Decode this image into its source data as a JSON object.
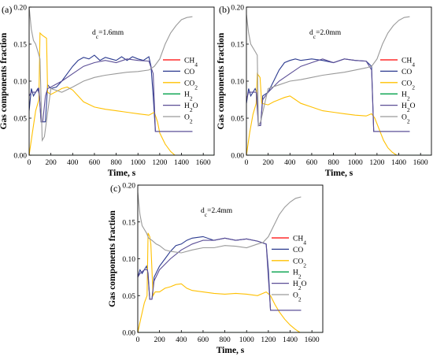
{
  "figure": {
    "panel_count": 3
  },
  "chart_data": [
    {
      "type": "line",
      "panel_label": "(a)",
      "annotation": "d_c=1.6mm",
      "annotation_main": "d",
      "annotation_sub": "c",
      "annotation_rest": "=1.6mm",
      "xlabel": "Time, s",
      "ylabel": "Gas components fraction",
      "xlim": [
        0,
        1700
      ],
      "ylim": [
        0,
        0.2
      ],
      "xticks": [
        0,
        200,
        400,
        600,
        800,
        1000,
        1200,
        1400,
        1600
      ],
      "yticks": [
        0.0,
        0.05,
        0.1,
        0.15,
        0.2
      ],
      "ytick_labels": [
        "0.00",
        "0.05",
        "0.10",
        "0.15",
        "0.20"
      ],
      "grid": false,
      "legend_position": "right",
      "series": [
        {
          "name": "CH4",
          "label_main": "CH",
          "label_sub": "4",
          "color": "#ff0000",
          "x": [
            0,
            1700
          ],
          "y": [
            0,
            0
          ]
        },
        {
          "name": "CO",
          "label_main": "CO",
          "label_sub": "",
          "color": "#2b3a8f",
          "x": [
            0,
            20,
            40,
            60,
            80,
            95,
            110,
            150,
            170,
            200,
            250,
            300,
            350,
            400,
            450,
            500,
            550,
            600,
            650,
            700,
            750,
            800,
            850,
            900,
            950,
            1000,
            1050,
            1100,
            1120,
            1140,
            1160,
            1200,
            1500
          ],
          "y": [
            0.06,
            0.09,
            0.08,
            0.085,
            0.09,
            0.08,
            0.045,
            0.045,
            0.095,
            0.09,
            0.092,
            0.1,
            0.11,
            0.12,
            0.128,
            0.132,
            0.13,
            0.135,
            0.128,
            0.132,
            0.13,
            0.128,
            0.133,
            0.128,
            0.133,
            0.13,
            0.128,
            0.133,
            0.12,
            0.08,
            0.032,
            0.032,
            0.032
          ]
        },
        {
          "name": "CO2",
          "label_main": "CO",
          "label_sub": "2",
          "color": "#ffc000",
          "x": [
            0,
            30,
            60,
            90,
            100,
            120,
            160,
            170,
            200,
            250,
            300,
            350,
            400,
            500,
            600,
            700,
            800,
            900,
            1000,
            1100,
            1150,
            1180,
            1200,
            1250,
            1300,
            1340,
            1360
          ],
          "y": [
            0.0,
            0.03,
            0.06,
            0.075,
            0.165,
            0.162,
            0.158,
            0.085,
            0.082,
            0.086,
            0.09,
            0.092,
            0.088,
            0.072,
            0.065,
            0.062,
            0.06,
            0.058,
            0.056,
            0.054,
            0.058,
            0.045,
            0.03,
            0.015,
            0.005,
            0.0,
            0.0
          ]
        },
        {
          "name": "H2",
          "label_main": "H",
          "label_sub": "2",
          "color": "#00a04a",
          "x": [
            0,
            1700
          ],
          "y": [
            0,
            0
          ]
        },
        {
          "name": "H2O",
          "label_main": "H",
          "label_sub": "2",
          "label_rest": "O",
          "color": "#5b4e96",
          "x": [
            0,
            20,
            60,
            90,
            110,
            125,
            150,
            170,
            200,
            300,
            400,
            500,
            600,
            700,
            800,
            900,
            1000,
            1100,
            1140,
            1160,
            1500
          ],
          "y": [
            0.08,
            0.085,
            0.085,
            0.09,
            0.045,
            0.045,
            0.08,
            0.09,
            0.092,
            0.1,
            0.11,
            0.12,
            0.125,
            0.128,
            0.125,
            0.13,
            0.128,
            0.127,
            0.11,
            0.032,
            0.032
          ]
        },
        {
          "name": "O2",
          "label_main": "O",
          "label_sub": "2",
          "color": "#9a9a9a",
          "x": [
            0,
            20,
            40,
            60,
            80,
            100,
            120,
            140,
            200,
            300,
            400,
            500,
            600,
            700,
            800,
            900,
            1000,
            1100,
            1150,
            1200,
            1250,
            1300,
            1350,
            1400,
            1450,
            1500
          ],
          "y": [
            0.2,
            0.17,
            0.155,
            0.15,
            0.14,
            0.13,
            0.02,
            0.025,
            0.09,
            0.085,
            0.092,
            0.1,
            0.105,
            0.108,
            0.11,
            0.112,
            0.113,
            0.115,
            0.12,
            0.13,
            0.15,
            0.165,
            0.175,
            0.183,
            0.186,
            0.187
          ]
        }
      ]
    },
    {
      "type": "line",
      "panel_label": "(b)",
      "annotation": "d_c=2.0mm",
      "annotation_main": "d",
      "annotation_sub": "c",
      "annotation_rest": "=2.0mm",
      "xlabel": "Time, s",
      "ylabel": "Gas components fraction",
      "xlim": [
        0,
        1700
      ],
      "ylim": [
        0,
        0.2
      ],
      "xticks": [
        0,
        200,
        400,
        600,
        800,
        1000,
        1200,
        1400,
        1600
      ],
      "yticks": [
        0.0,
        0.05,
        0.1,
        0.15,
        0.2
      ],
      "ytick_labels": [
        "0.00",
        "0.05",
        "0.10",
        "0.15",
        "0.20"
      ],
      "grid": false,
      "legend_position": "right",
      "series": [
        {
          "name": "CH4",
          "label_main": "CH",
          "label_sub": "4",
          "color": "#ff0000",
          "x": [
            0,
            1700
          ],
          "y": [
            0,
            0
          ]
        },
        {
          "name": "CO",
          "label_main": "CO",
          "label_sub": "",
          "color": "#2b3a8f",
          "x": [
            0,
            20,
            40,
            60,
            80,
            95,
            110,
            130,
            150,
            200,
            250,
            300,
            350,
            400,
            450,
            500,
            600,
            700,
            800,
            900,
            1000,
            1100,
            1150,
            1170,
            1200,
            1500
          ],
          "y": [
            0.07,
            0.09,
            0.08,
            0.085,
            0.09,
            0.085,
            0.04,
            0.04,
            0.08,
            0.085,
            0.1,
            0.115,
            0.125,
            0.128,
            0.13,
            0.128,
            0.13,
            0.128,
            0.125,
            0.13,
            0.128,
            0.127,
            0.12,
            0.032,
            0.032,
            0.032
          ]
        },
        {
          "name": "CO2",
          "label_main": "CO",
          "label_sub": "2",
          "color": "#ffc000",
          "x": [
            0,
            30,
            60,
            90,
            100,
            110,
            125,
            140,
            200,
            250,
            300,
            350,
            400,
            450,
            500,
            600,
            700,
            800,
            900,
            1000,
            1100,
            1150,
            1180,
            1220,
            1260,
            1300,
            1340,
            1380,
            1420
          ],
          "y": [
            0.0,
            0.03,
            0.055,
            0.07,
            0.11,
            0.108,
            0.105,
            0.07,
            0.068,
            0.072,
            0.075,
            0.078,
            0.08,
            0.075,
            0.07,
            0.065,
            0.06,
            0.058,
            0.056,
            0.054,
            0.053,
            0.056,
            0.05,
            0.035,
            0.02,
            0.01,
            0.004,
            0.0,
            0.0
          ]
        },
        {
          "name": "H2",
          "label_main": "H",
          "label_sub": "2",
          "color": "#00a04a",
          "x": [
            0,
            1700
          ],
          "y": [
            0,
            0
          ]
        },
        {
          "name": "H2O",
          "label_main": "H",
          "label_sub": "2",
          "label_rest": "O",
          "color": "#5b4e96",
          "x": [
            0,
            20,
            60,
            90,
            110,
            130,
            150,
            200,
            300,
            400,
            500,
            600,
            700,
            800,
            900,
            1000,
            1100,
            1150,
            1170,
            1500
          ],
          "y": [
            0.075,
            0.085,
            0.085,
            0.085,
            0.04,
            0.04,
            0.075,
            0.085,
            0.1,
            0.11,
            0.12,
            0.125,
            0.13,
            0.125,
            0.13,
            0.128,
            0.127,
            0.115,
            0.032,
            0.032
          ]
        },
        {
          "name": "O2",
          "label_main": "O",
          "label_sub": "2",
          "color": "#9a9a9a",
          "x": [
            0,
            20,
            40,
            60,
            80,
            100,
            110,
            130,
            200,
            300,
            400,
            500,
            600,
            700,
            800,
            900,
            1000,
            1100,
            1150,
            1200,
            1250,
            1300,
            1350,
            1400,
            1450,
            1500
          ],
          "y": [
            0.19,
            0.165,
            0.15,
            0.145,
            0.14,
            0.135,
            0.04,
            0.045,
            0.09,
            0.095,
            0.1,
            0.102,
            0.105,
            0.108,
            0.11,
            0.112,
            0.115,
            0.118,
            0.12,
            0.13,
            0.15,
            0.165,
            0.175,
            0.182,
            0.186,
            0.187
          ]
        }
      ]
    },
    {
      "type": "line",
      "panel_label": "(c)",
      "annotation": "d_c=2.4mm",
      "annotation_main": "d",
      "annotation_sub": "c",
      "annotation_rest": "=2.4mm",
      "xlabel": "Time, s",
      "ylabel": "Gas components fraction",
      "xlim": [
        0,
        1700
      ],
      "ylim": [
        0,
        0.2
      ],
      "xticks": [
        0,
        200,
        400,
        600,
        800,
        1000,
        1200,
        1400,
        1600
      ],
      "yticks": [
        0.0,
        0.05,
        0.1,
        0.15,
        0.2
      ],
      "ytick_labels": [
        "0.00",
        "0.05",
        "0.10",
        "0.15",
        "0.20"
      ],
      "grid": false,
      "legend_position": "right",
      "series": [
        {
          "name": "CH4",
          "label_main": "CH",
          "label_sub": "4",
          "color": "#ff0000",
          "x": [
            0,
            1700
          ],
          "y": [
            0,
            0
          ]
        },
        {
          "name": "CO",
          "label_main": "CO",
          "label_sub": "",
          "color": "#2b3a8f",
          "x": [
            0,
            20,
            40,
            60,
            80,
            95,
            110,
            130,
            150,
            200,
            250,
            300,
            350,
            400,
            450,
            500,
            600,
            700,
            800,
            900,
            1000,
            1100,
            1180,
            1200,
            1220,
            1500
          ],
          "y": [
            0.075,
            0.085,
            0.08,
            0.085,
            0.09,
            0.08,
            0.045,
            0.045,
            0.075,
            0.09,
            0.1,
            0.11,
            0.118,
            0.12,
            0.125,
            0.128,
            0.13,
            0.125,
            0.128,
            0.125,
            0.127,
            0.124,
            0.12,
            0.085,
            0.03,
            0.03
          ]
        },
        {
          "name": "CO2",
          "label_main": "CO",
          "label_sub": "2",
          "color": "#ffc000",
          "x": [
            0,
            30,
            60,
            85,
            95,
            110,
            120,
            140,
            160,
            200,
            250,
            300,
            350,
            400,
            450,
            500,
            600,
            700,
            800,
            900,
            1000,
            1100,
            1180,
            1220,
            1260,
            1300,
            1350,
            1400,
            1450,
            1490
          ],
          "y": [
            0.0,
            0.02,
            0.04,
            0.05,
            0.135,
            0.13,
            0.12,
            0.05,
            0.055,
            0.055,
            0.06,
            0.062,
            0.065,
            0.066,
            0.06,
            0.057,
            0.055,
            0.053,
            0.052,
            0.053,
            0.052,
            0.05,
            0.055,
            0.05,
            0.038,
            0.028,
            0.018,
            0.01,
            0.004,
            0.0
          ]
        },
        {
          "name": "H2",
          "label_main": "H",
          "label_sub": "2",
          "color": "#00a04a",
          "x": [
            0,
            1700
          ],
          "y": [
            0,
            0
          ]
        },
        {
          "name": "H2O",
          "label_main": "H",
          "label_sub": "2",
          "label_rest": "O",
          "color": "#5b4e96",
          "x": [
            0,
            20,
            60,
            90,
            110,
            130,
            150,
            200,
            300,
            400,
            500,
            600,
            700,
            800,
            900,
            1000,
            1100,
            1180,
            1220,
            1500
          ],
          "y": [
            0.075,
            0.08,
            0.085,
            0.085,
            0.045,
            0.045,
            0.07,
            0.085,
            0.1,
            0.112,
            0.12,
            0.125,
            0.125,
            0.128,
            0.125,
            0.127,
            0.124,
            0.12,
            0.03,
            0.03
          ]
        },
        {
          "name": "O2",
          "label_main": "O",
          "label_sub": "2",
          "color": "#9a9a9a",
          "x": [
            0,
            20,
            40,
            60,
            80,
            100,
            130,
            170,
            200,
            250,
            300,
            400,
            500,
            600,
            700,
            800,
            900,
            1000,
            1100,
            1150,
            1200,
            1250,
            1300,
            1350,
            1400,
            1450,
            1500
          ],
          "y": [
            0.19,
            0.16,
            0.145,
            0.14,
            0.135,
            0.128,
            0.125,
            0.12,
            0.118,
            0.112,
            0.11,
            0.108,
            0.112,
            0.115,
            0.115,
            0.118,
            0.117,
            0.115,
            0.12,
            0.122,
            0.13,
            0.145,
            0.16,
            0.17,
            0.177,
            0.182,
            0.184
          ]
        }
      ]
    }
  ]
}
